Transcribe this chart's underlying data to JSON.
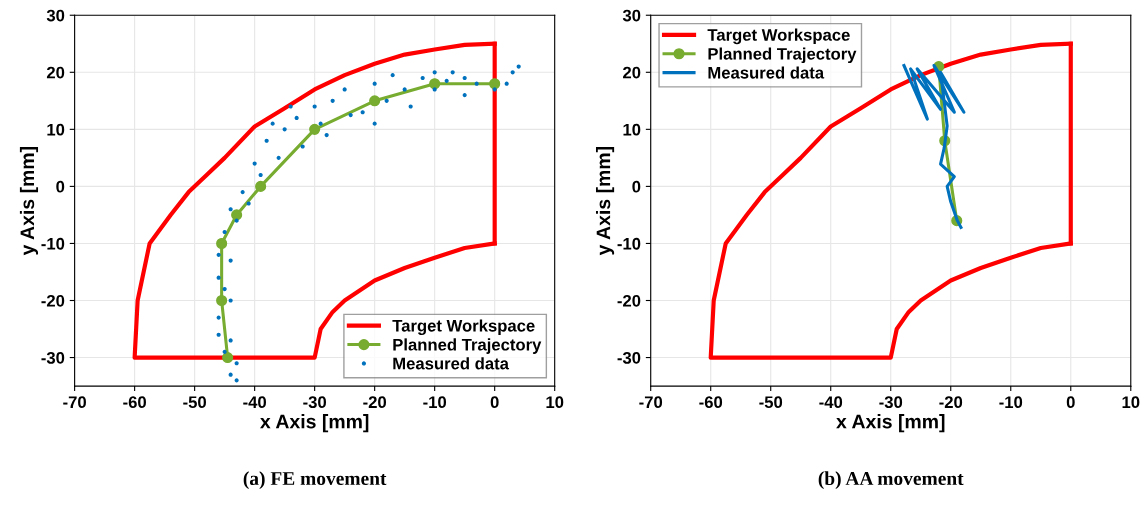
{
  "chart_data": [
    {
      "type": "line",
      "xlabel": "x Axis [mm]",
      "ylabel": "y Axis [mm]",
      "xlim": [
        -70,
        10
      ],
      "ylim": [
        -35,
        30
      ],
      "xticks": [
        -70,
        -60,
        -50,
        -40,
        -30,
        -20,
        -10,
        0,
        10
      ],
      "yticks": [
        -30,
        -20,
        -10,
        0,
        10,
        20,
        30
      ],
      "grid": true,
      "legend": "bottom right",
      "annotations": [
        "(a) FE movement"
      ],
      "series": [
        {
          "name": "Target Workspace",
          "marker": "none",
          "color": "#ff0000",
          "x": [
            0,
            -5,
            -10,
            -15,
            -20,
            -25,
            -30,
            -35,
            -40,
            -45,
            -48,
            -51,
            -54,
            -57.5,
            -59.5,
            -60,
            -30,
            -29,
            -27,
            -25,
            -20,
            -15,
            -10,
            -5,
            0
          ],
          "values": [
            25,
            24.8,
            24,
            23.1,
            21.5,
            19.5,
            17,
            13.7,
            10.5,
            5,
            2,
            -1,
            -5,
            -10,
            -20,
            -30,
            -30,
            -25,
            -22,
            -20,
            -16.5,
            -14.3,
            -12.5,
            -10.8,
            -10
          ]
        },
        {
          "marker": "none",
          "color": "#ff0000",
          "x": [
            0,
            0
          ],
          "values": [
            -10,
            25
          ]
        },
        {
          "name": "Planned Trajectory",
          "marker": "circle",
          "color": "#77ac30",
          "x": [
            0,
            -10,
            -20,
            -30,
            -39,
            -43,
            -45.5,
            -45.5,
            -44.5
          ],
          "values": [
            18,
            18,
            15,
            10,
            0,
            -5,
            -10,
            -20,
            -30
          ]
        },
        {
          "name": "Measured data",
          "type": "scatter",
          "marker": "circle",
          "color": "#0072bd",
          "x": [
            3,
            4,
            2,
            0,
            -3,
            -5,
            -8,
            -10,
            -12,
            -15,
            -17,
            -18,
            -20,
            -22,
            -24,
            -25,
            -27,
            -29,
            -30,
            -32,
            -33,
            -35,
            -36,
            -38,
            -39,
            -40,
            -41,
            -42,
            -43,
            -44,
            -45,
            -46,
            -44,
            -46,
            -45,
            -44,
            -46,
            -46,
            -44,
            -45,
            -43,
            -44,
            -43,
            -10,
            -5,
            -20,
            -14,
            -7,
            -28,
            -34,
            -37
          ],
          "values": [
            20,
            21,
            18,
            17,
            18,
            19,
            18.5,
            17,
            19,
            17,
            19.5,
            15,
            18,
            13,
            12.5,
            17,
            15,
            11,
            14,
            7,
            12,
            10,
            5,
            8,
            2,
            4,
            -3,
            -1,
            -6,
            -4,
            -8,
            -12,
            -13,
            -16,
            -18,
            -20,
            -23,
            -26,
            -27,
            -29,
            -31,
            -33,
            -34,
            20,
            16,
            11,
            14,
            20,
            9,
            14,
            11
          ]
        }
      ]
    },
    {
      "type": "line",
      "xlabel": "x Axis [mm]",
      "ylabel": "y Axis [mm]",
      "xlim": [
        -70,
        10
      ],
      "ylim": [
        -35,
        30
      ],
      "xticks": [
        -70,
        -60,
        -50,
        -40,
        -30,
        -20,
        -10,
        0,
        10
      ],
      "yticks": [
        -30,
        -20,
        -10,
        0,
        10,
        20,
        30
      ],
      "grid": true,
      "legend": "top left",
      "annotations": [
        "(b) AA movement"
      ],
      "series": [
        {
          "name": "Target Workspace",
          "marker": "none",
          "color": "#ff0000",
          "x": [
            0,
            -5,
            -10,
            -15,
            -20,
            -25,
            -30,
            -35,
            -40,
            -45,
            -48,
            -51,
            -54,
            -57.5,
            -59.5,
            -60,
            -30,
            -29,
            -27,
            -25,
            -20,
            -15,
            -10,
            -5,
            0
          ],
          "values": [
            25,
            24.8,
            24,
            23.1,
            21.5,
            19.5,
            17,
            13.7,
            10.5,
            5,
            2,
            -1,
            -5,
            -10,
            -20,
            -30,
            -30,
            -25,
            -22,
            -20,
            -16.5,
            -14.3,
            -12.5,
            -10.8,
            -10
          ]
        },
        {
          "marker": "none",
          "color": "#ff0000",
          "x": [
            0,
            0
          ],
          "values": [
            -10,
            25
          ]
        },
        {
          "name": "Planned Trajectory",
          "marker": "circle",
          "color": "#77ac30",
          "x": [
            -22,
            -21,
            -19
          ],
          "values": [
            21,
            8,
            -6
          ]
        },
        {
          "name": "Measured data",
          "marker": "none",
          "color": "#0072bd",
          "x": [
            -27.8,
            -23.9,
            -26.7,
            -21.7,
            -25.6,
            -19.4,
            -22.8,
            -17.8,
            -21.7,
            -20.6,
            -21.1,
            -21.7,
            -19.4,
            -20.6,
            -20,
            -18.9,
            -18.3
          ],
          "values": [
            21.2,
            11.8,
            20.6,
            13.5,
            20.6,
            13,
            21.2,
            13,
            20,
            10.6,
            6.7,
            3.9,
            1.7,
            0,
            -2.7,
            -6,
            -7.2
          ]
        }
      ]
    }
  ]
}
